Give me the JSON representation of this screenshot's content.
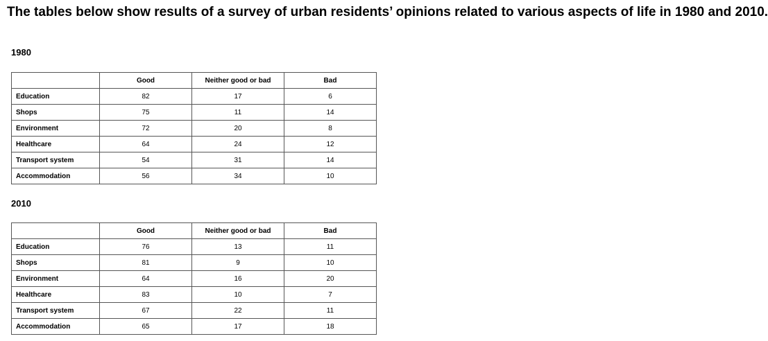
{
  "title": "The tables below show results of a survey of urban residents’ opinions related to various aspects of life in 1980 and 2010.",
  "chart_data": [
    {
      "type": "table",
      "title": "1980",
      "columns": [
        "",
        "Good",
        "Neither good or bad",
        "Bad"
      ],
      "rows": [
        [
          "Education",
          "82",
          "17",
          "6"
        ],
        [
          "Shops",
          "75",
          "11",
          "14"
        ],
        [
          "Environment",
          "72",
          "20",
          "8"
        ],
        [
          "Healthcare",
          "64",
          "24",
          "12"
        ],
        [
          "Transport system",
          "54",
          "31",
          "14"
        ],
        [
          "Accommodation",
          "56",
          "34",
          "10"
        ]
      ]
    },
    {
      "type": "table",
      "title": "2010",
      "columns": [
        "",
        "Good",
        "Neither good or bad",
        "Bad"
      ],
      "rows": [
        [
          "Education",
          "76",
          "13",
          "11"
        ],
        [
          "Shops",
          "81",
          "9",
          "10"
        ],
        [
          "Environment",
          "64",
          "16",
          "20"
        ],
        [
          "Healthcare",
          "83",
          "10",
          "7"
        ],
        [
          "Transport system",
          "67",
          "22",
          "11"
        ],
        [
          "Accommodation",
          "65",
          "17",
          "18"
        ]
      ]
    }
  ]
}
